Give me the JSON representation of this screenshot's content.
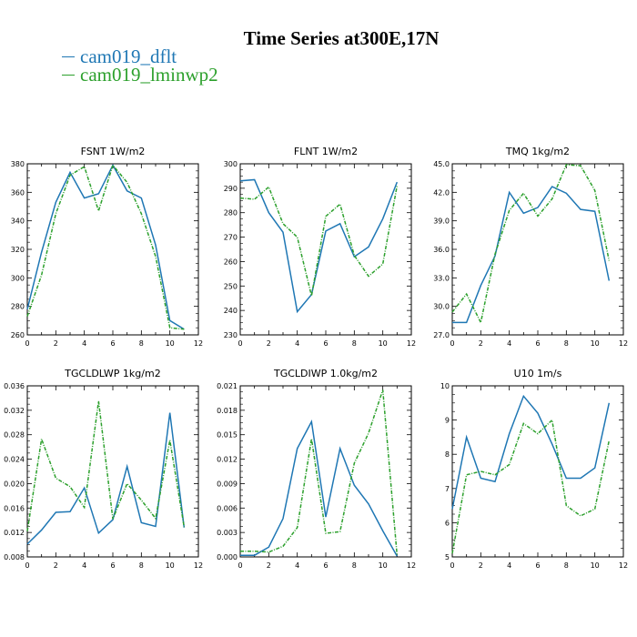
{
  "header": {
    "title": "Time Series at300E,17N",
    "legend": [
      {
        "label": "cam019_dflt",
        "color": "#1f77b4"
      },
      {
        "label": "cam019_lminwp2",
        "color": "#2ca02c"
      }
    ]
  },
  "chart_data": [
    {
      "type": "line",
      "title": "FSNT   1W/m2",
      "xlim": [
        0,
        12
      ],
      "xticks": [
        0,
        2,
        4,
        6,
        8,
        10,
        12
      ],
      "ylim": [
        260,
        380
      ],
      "yticks": [
        "260",
        "280",
        "300",
        "320",
        "340",
        "360",
        "380"
      ],
      "ytick_values": [
        260,
        280,
        300,
        320,
        340,
        360,
        380
      ],
      "x": [
        0,
        1,
        2,
        3,
        4,
        5,
        6,
        7,
        8,
        9,
        10,
        11
      ],
      "series": [
        {
          "name": "cam019_dflt",
          "values": [
            278,
            318,
            353,
            374,
            356,
            359,
            379,
            361,
            356,
            323,
            270,
            264
          ]
        },
        {
          "name": "cam019_lminwp2",
          "values": [
            273,
            302,
            345,
            372,
            378,
            347,
            379,
            367,
            345,
            315,
            265,
            264
          ]
        }
      ]
    },
    {
      "type": "line",
      "title": "FLNT   1W/m2",
      "xlim": [
        0,
        12
      ],
      "xticks": [
        0,
        2,
        4,
        6,
        8,
        10,
        12
      ],
      "ylim": [
        230,
        300
      ],
      "yticks": [
        "230",
        "240",
        "250",
        "260",
        "270",
        "280",
        "290",
        "300"
      ],
      "ytick_values": [
        230,
        240,
        250,
        260,
        270,
        280,
        290,
        300
      ],
      "x": [
        0,
        1,
        2,
        3,
        4,
        5,
        6,
        7,
        8,
        9,
        10,
        11
      ],
      "series": [
        {
          "name": "cam019_dflt",
          "values": [
            293,
            293.5,
            280,
            272,
            239.5,
            246.5,
            272.5,
            275.5,
            262,
            266,
            277.5,
            292.5
          ]
        },
        {
          "name": "cam019_lminwp2",
          "values": [
            286,
            285.5,
            290.5,
            275.5,
            270,
            246,
            278.5,
            283.5,
            262.5,
            254,
            259,
            291
          ]
        }
      ]
    },
    {
      "type": "line",
      "title": "TMQ   1kg/m2",
      "xlim": [
        0,
        12
      ],
      "xticks": [
        0,
        2,
        4,
        6,
        8,
        10,
        12
      ],
      "ylim": [
        27,
        45
      ],
      "yticks": [
        "27.0",
        "30.0",
        "33.0",
        "36.0",
        "39.0",
        "42.0",
        "45.0"
      ],
      "ytick_values": [
        27,
        30,
        33,
        36,
        39,
        42,
        45
      ],
      "x": [
        0,
        1,
        2,
        3,
        4,
        5,
        6,
        7,
        8,
        9,
        10,
        11
      ],
      "series": [
        {
          "name": "cam019_dflt",
          "values": [
            28.3,
            28.3,
            32.2,
            35.3,
            42.0,
            39.8,
            40.4,
            42.6,
            41.9,
            40.2,
            40.0,
            32.7
          ]
        },
        {
          "name": "cam019_lminwp2",
          "values": [
            29.4,
            31.3,
            28.3,
            35.5,
            40.1,
            41.9,
            39.5,
            41.3,
            44.9,
            44.8,
            42.2,
            34.8
          ]
        }
      ]
    },
    {
      "type": "line",
      "title": "TGCLDLWP   1kg/m2",
      "xlim": [
        0,
        12
      ],
      "xticks": [
        0,
        2,
        4,
        6,
        8,
        10,
        12
      ],
      "ylim": [
        0.008,
        0.036
      ],
      "yticks": [
        "0.008",
        "0.012",
        "0.016",
        "0.020",
        "0.024",
        "0.028",
        "0.032",
        "0.036"
      ],
      "ytick_values": [
        0.008,
        0.012,
        0.016,
        0.02,
        0.024,
        0.028,
        0.032,
        0.036
      ],
      "x": [
        0,
        1,
        2,
        3,
        4,
        5,
        6,
        7,
        8,
        9,
        10,
        11
      ],
      "series": [
        {
          "name": "cam019_dflt",
          "values": [
            0.0101,
            0.0124,
            0.0153,
            0.0154,
            0.0193,
            0.0119,
            0.0141,
            0.0228,
            0.0136,
            0.013,
            0.0316,
            0.0128
          ]
        },
        {
          "name": "cam019_lminwp2",
          "values": [
            0.0122,
            0.0273,
            0.0209,
            0.0195,
            0.0161,
            0.0335,
            0.0142,
            0.02,
            0.0173,
            0.0143,
            0.0271,
            0.0129
          ]
        }
      ]
    },
    {
      "type": "line",
      "title": "TGCLDIWP   1.0kg/m2",
      "xlim": [
        0,
        12
      ],
      "xticks": [
        0,
        2,
        4,
        6,
        8,
        10,
        12
      ],
      "ylim": [
        0,
        0.021
      ],
      "yticks": [
        "0.000",
        "0.003",
        "0.006",
        "0.009",
        "0.012",
        "0.015",
        "0.018",
        "0.021"
      ],
      "ytick_values": [
        0,
        0.003,
        0.006,
        0.009,
        0.012,
        0.015,
        0.018,
        0.021
      ],
      "x": [
        0,
        1,
        2,
        3,
        4,
        5,
        6,
        7,
        8,
        9,
        10,
        11
      ],
      "series": [
        {
          "name": "cam019_dflt",
          "values": [
            0.0002,
            0.0002,
            0.0012,
            0.0047,
            0.0133,
            0.0166,
            0.0049,
            0.0133,
            0.0088,
            0.0065,
            0.0032,
            0.0001
          ]
        },
        {
          "name": "cam019_lminwp2",
          "values": [
            0.0007,
            0.0007,
            0.0006,
            0.0013,
            0.0036,
            0.0145,
            0.0029,
            0.0031,
            0.0115,
            0.0152,
            0.0205,
            0.0002
          ]
        }
      ]
    },
    {
      "type": "line",
      "title": "U10   1m/s",
      "xlim": [
        0,
        12
      ],
      "xticks": [
        0,
        2,
        4,
        6,
        8,
        10,
        12
      ],
      "ylim": [
        5,
        10
      ],
      "yticks": [
        "5",
        "6",
        "7",
        "8",
        "9",
        "10"
      ],
      "ytick_values": [
        5,
        6,
        7,
        8,
        9,
        10
      ],
      "x": [
        0,
        1,
        2,
        3,
        4,
        5,
        6,
        7,
        8,
        9,
        10,
        11
      ],
      "series": [
        {
          "name": "cam019_dflt",
          "values": [
            6.4,
            8.5,
            7.3,
            7.2,
            8.6,
            9.7,
            9.2,
            8.3,
            7.3,
            7.3,
            7.6,
            9.5
          ]
        },
        {
          "name": "cam019_lminwp2",
          "values": [
            5.1,
            7.4,
            7.5,
            7.4,
            7.7,
            8.9,
            8.6,
            9.0,
            6.5,
            6.2,
            6.4,
            8.4
          ]
        }
      ]
    }
  ]
}
